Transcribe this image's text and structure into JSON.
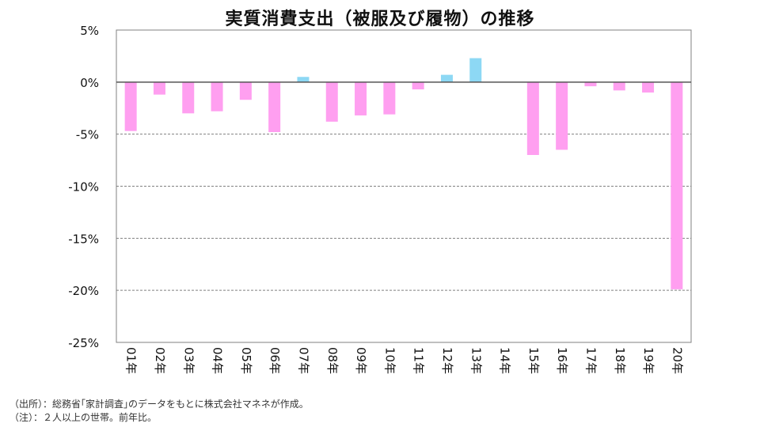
{
  "chart_data": {
    "type": "bar",
    "title": "実質消費支出（被服及び履物）の推移",
    "xlabel": "",
    "ylabel": "",
    "ylim": [
      -25,
      5
    ],
    "y_ticks": [
      "5%",
      "0%",
      "-5%",
      "-10%",
      "-15%",
      "-20%",
      "-25%"
    ],
    "y_tick_values": [
      5,
      0,
      -5,
      -10,
      -15,
      -20,
      -25
    ],
    "categories": [
      "01年",
      "02年",
      "03年",
      "04年",
      "05年",
      "06年",
      "07年",
      "08年",
      "09年",
      "10年",
      "11年",
      "12年",
      "13年",
      "14年",
      "15年",
      "16年",
      "17年",
      "18年",
      "19年",
      "20年"
    ],
    "values": [
      -4.7,
      -1.2,
      -3.0,
      -2.8,
      -1.7,
      -4.8,
      0.5,
      -3.8,
      -3.2,
      -3.1,
      -0.7,
      0.7,
      2.3,
      0.0,
      -7.0,
      -6.5,
      -0.4,
      -0.8,
      -1.0,
      -19.9
    ],
    "grid": "horizontal-dashed",
    "legend": "none",
    "colors": {
      "negative": "#ff9ff0",
      "positive": "#8dd8f4",
      "axis": "#808080",
      "grid": "#808080"
    }
  },
  "footnotes": {
    "source": "（出所）：総務省｢家計調査｣のデータをもとに株式会社マネネが作成。",
    "note": "（注）：２人以上の世帯。前年比。"
  }
}
